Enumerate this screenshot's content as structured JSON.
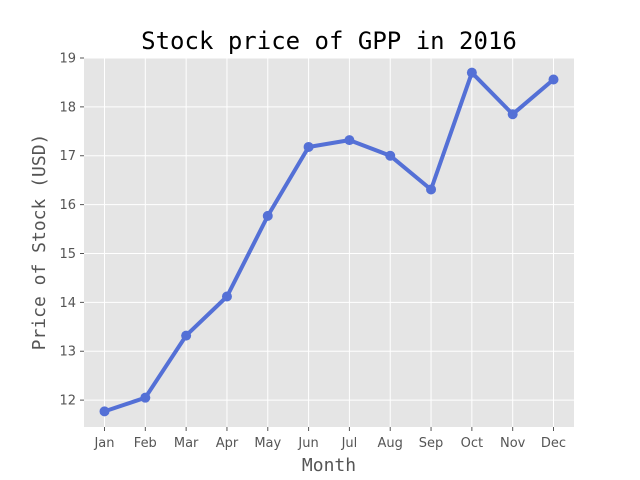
{
  "chart_data": {
    "type": "line",
    "title": "Stock price of GPP in 2016",
    "xlabel": "Month",
    "ylabel": "Price of Stock (USD)",
    "categories": [
      "Jan",
      "Feb",
      "Mar",
      "Apr",
      "May",
      "Jun",
      "Jul",
      "Aug",
      "Sep",
      "Oct",
      "Nov",
      "Dec"
    ],
    "series": [
      {
        "values": [
          11.77,
          12.05,
          13.32,
          14.12,
          15.77,
          17.18,
          17.32,
          17.0,
          16.31,
          18.7,
          17.85,
          18.56
        ],
        "color": "#5470d6"
      }
    ],
    "ylim": [
      11.45,
      19.0
    ],
    "yticks": [
      12,
      13,
      14,
      15,
      16,
      17,
      18,
      19
    ],
    "grid": true,
    "legend": "none",
    "style": {
      "background": "#e5e5e5",
      "grid_color": "#ffffff"
    }
  }
}
